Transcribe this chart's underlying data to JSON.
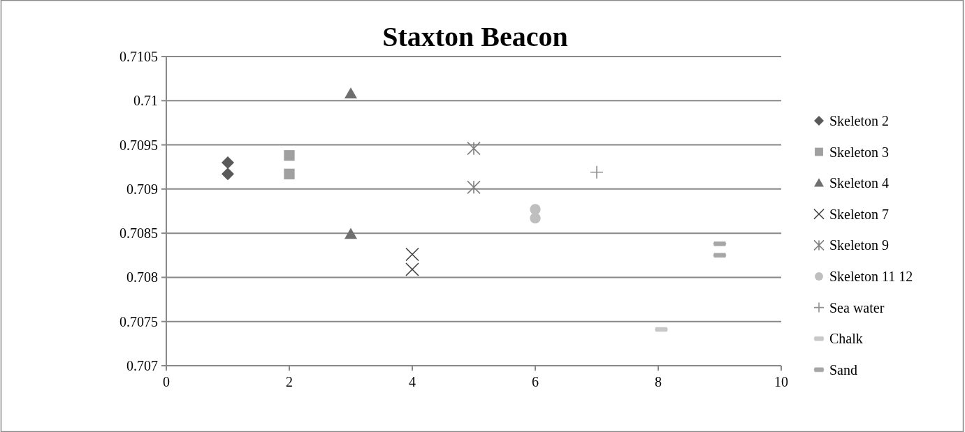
{
  "chart_data": {
    "type": "scatter",
    "title": "Staxton Beacon",
    "xlim": [
      0,
      10
    ],
    "xticks": [
      0,
      2,
      4,
      6,
      8,
      10
    ],
    "ylim": [
      0.707,
      0.7105
    ],
    "yticks": [
      0.707,
      0.7075,
      0.708,
      0.7085,
      0.709,
      0.7095,
      0.71,
      0.7105
    ],
    "grid": "y",
    "legend": "right",
    "series": [
      {
        "name": "Skeleton 2",
        "color": "#595959",
        "marker": "diamond",
        "x": [
          1,
          1
        ],
        "values": [
          0.7093,
          0.70917
        ]
      },
      {
        "name": "Skeleton 3",
        "color": "#a0a0a0",
        "marker": "square",
        "x": [
          2,
          2
        ],
        "values": [
          0.70938,
          0.70917
        ]
      },
      {
        "name": "Skeleton 4",
        "color": "#6e6e6e",
        "marker": "triangle",
        "x": [
          3,
          3
        ],
        "values": [
          0.71008,
          0.70849
        ]
      },
      {
        "name": "Skeleton 7",
        "color": "#404040",
        "marker": "cross",
        "x": [
          4,
          4
        ],
        "values": [
          0.70826,
          0.70809
        ]
      },
      {
        "name": "Skeleton 9",
        "color": "#808080",
        "x": [
          5,
          5
        ],
        "values": [
          0.70946,
          0.70902
        ]
      },
      {
        "name": "Skeleton 11 12",
        "color": "#bfbfbf",
        "marker": "circle",
        "x": [
          6,
          6
        ],
        "values": [
          0.70877,
          0.70867
        ]
      },
      {
        "name": "Sea water",
        "color": "#909090",
        "marker": "plus",
        "x": [
          7
        ],
        "values": [
          0.70919
        ]
      },
      {
        "name": "Chalk",
        "color": "#c8c8c8",
        "x": [
          8.05
        ],
        "values": [
          0.70741
        ]
      },
      {
        "name": "Sand",
        "color": "#a6a6a6",
        "x": [
          9,
          9
        ],
        "values": [
          0.70838,
          0.70825
        ]
      }
    ]
  }
}
